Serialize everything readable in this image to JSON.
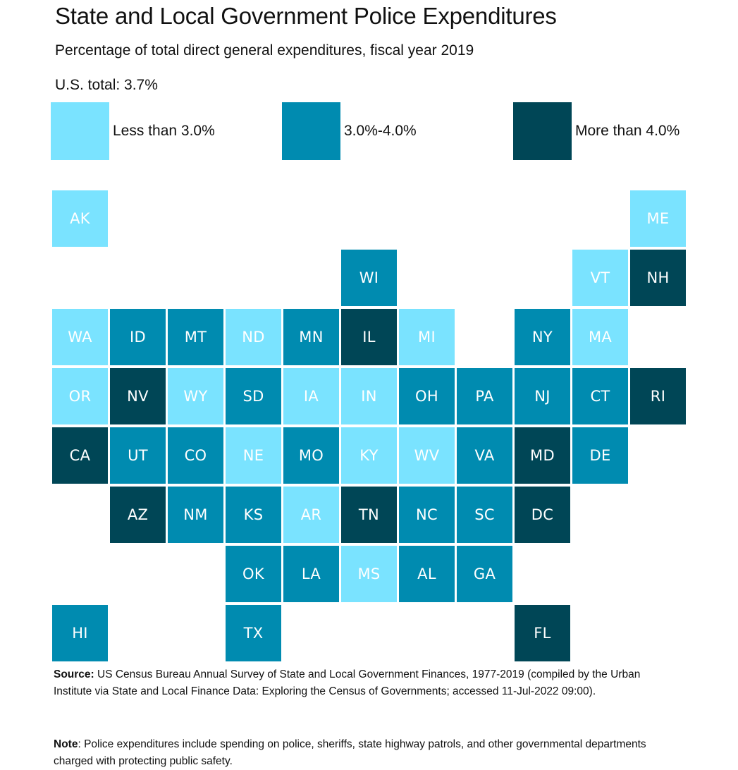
{
  "chart_data": {
    "type": "heatmap",
    "title": "State and Local Government Police Expenditures",
    "subtitle": "Percentage of total direct general expenditures, fiscal year 2019",
    "annotation": "U.S. total: 3.7%",
    "legend": {
      "placement": "top",
      "entries": [
        {
          "key": "low",
          "label": "Less than 3.0%",
          "color": "#7AE3FF"
        },
        {
          "key": "mid",
          "label": "3.0%-4.0%",
          "color": "#008BB0"
        },
        {
          "key": "high",
          "label": "More than 4.0%",
          "color": "#004656"
        }
      ]
    },
    "grid": {
      "columns": 11,
      "rows": 8
    },
    "tiles": [
      {
        "state": "AK",
        "row": 0,
        "col": 0,
        "bin": "low"
      },
      {
        "state": "ME",
        "row": 0,
        "col": 10,
        "bin": "low"
      },
      {
        "state": "WI",
        "row": 1,
        "col": 5,
        "bin": "mid"
      },
      {
        "state": "VT",
        "row": 1,
        "col": 9,
        "bin": "low"
      },
      {
        "state": "NH",
        "row": 1,
        "col": 10,
        "bin": "high"
      },
      {
        "state": "WA",
        "row": 2,
        "col": 0,
        "bin": "low"
      },
      {
        "state": "ID",
        "row": 2,
        "col": 1,
        "bin": "mid"
      },
      {
        "state": "MT",
        "row": 2,
        "col": 2,
        "bin": "mid"
      },
      {
        "state": "ND",
        "row": 2,
        "col": 3,
        "bin": "low"
      },
      {
        "state": "MN",
        "row": 2,
        "col": 4,
        "bin": "mid"
      },
      {
        "state": "IL",
        "row": 2,
        "col": 5,
        "bin": "high"
      },
      {
        "state": "MI",
        "row": 2,
        "col": 6,
        "bin": "low"
      },
      {
        "state": "NY",
        "row": 2,
        "col": 8,
        "bin": "mid"
      },
      {
        "state": "MA",
        "row": 2,
        "col": 9,
        "bin": "low"
      },
      {
        "state": "OR",
        "row": 3,
        "col": 0,
        "bin": "low"
      },
      {
        "state": "NV",
        "row": 3,
        "col": 1,
        "bin": "high"
      },
      {
        "state": "WY",
        "row": 3,
        "col": 2,
        "bin": "low"
      },
      {
        "state": "SD",
        "row": 3,
        "col": 3,
        "bin": "mid"
      },
      {
        "state": "IA",
        "row": 3,
        "col": 4,
        "bin": "low"
      },
      {
        "state": "IN",
        "row": 3,
        "col": 5,
        "bin": "low"
      },
      {
        "state": "OH",
        "row": 3,
        "col": 6,
        "bin": "mid"
      },
      {
        "state": "PA",
        "row": 3,
        "col": 7,
        "bin": "mid"
      },
      {
        "state": "NJ",
        "row": 3,
        "col": 8,
        "bin": "mid"
      },
      {
        "state": "CT",
        "row": 3,
        "col": 9,
        "bin": "mid"
      },
      {
        "state": "RI",
        "row": 3,
        "col": 10,
        "bin": "high"
      },
      {
        "state": "CA",
        "row": 4,
        "col": 0,
        "bin": "high"
      },
      {
        "state": "UT",
        "row": 4,
        "col": 1,
        "bin": "mid"
      },
      {
        "state": "CO",
        "row": 4,
        "col": 2,
        "bin": "mid"
      },
      {
        "state": "NE",
        "row": 4,
        "col": 3,
        "bin": "low"
      },
      {
        "state": "MO",
        "row": 4,
        "col": 4,
        "bin": "mid"
      },
      {
        "state": "KY",
        "row": 4,
        "col": 5,
        "bin": "low"
      },
      {
        "state": "WV",
        "row": 4,
        "col": 6,
        "bin": "low"
      },
      {
        "state": "VA",
        "row": 4,
        "col": 7,
        "bin": "mid"
      },
      {
        "state": "MD",
        "row": 4,
        "col": 8,
        "bin": "high"
      },
      {
        "state": "DE",
        "row": 4,
        "col": 9,
        "bin": "mid"
      },
      {
        "state": "AZ",
        "row": 5,
        "col": 1,
        "bin": "high"
      },
      {
        "state": "NM",
        "row": 5,
        "col": 2,
        "bin": "mid"
      },
      {
        "state": "KS",
        "row": 5,
        "col": 3,
        "bin": "mid"
      },
      {
        "state": "AR",
        "row": 5,
        "col": 4,
        "bin": "low"
      },
      {
        "state": "TN",
        "row": 5,
        "col": 5,
        "bin": "high"
      },
      {
        "state": "NC",
        "row": 5,
        "col": 6,
        "bin": "mid"
      },
      {
        "state": "SC",
        "row": 5,
        "col": 7,
        "bin": "mid"
      },
      {
        "state": "DC",
        "row": 5,
        "col": 8,
        "bin": "high"
      },
      {
        "state": "OK",
        "row": 6,
        "col": 3,
        "bin": "mid"
      },
      {
        "state": "LA",
        "row": 6,
        "col": 4,
        "bin": "mid"
      },
      {
        "state": "MS",
        "row": 6,
        "col": 5,
        "bin": "low"
      },
      {
        "state": "AL",
        "row": 6,
        "col": 6,
        "bin": "mid"
      },
      {
        "state": "GA",
        "row": 6,
        "col": 7,
        "bin": "mid"
      },
      {
        "state": "HI",
        "row": 7,
        "col": 0,
        "bin": "mid"
      },
      {
        "state": "TX",
        "row": 7,
        "col": 3,
        "bin": "mid"
      },
      {
        "state": "FL",
        "row": 7,
        "col": 8,
        "bin": "high"
      }
    ]
  },
  "footer": {
    "source_label": "Source:",
    "source_text": " US Census Bureau Annual Survey of State and Local Government Finances, 1977-2019 (compiled by the Urban Institute via State and Local Finance Data: Exploring the Census of Governments; accessed 11-Jul-2022 09:00).",
    "note_label": "Note",
    "note_text": ": Police expenditures include spending on police, sheriffs, state highway patrols, and other governmental departments charged with protecting public safety."
  }
}
